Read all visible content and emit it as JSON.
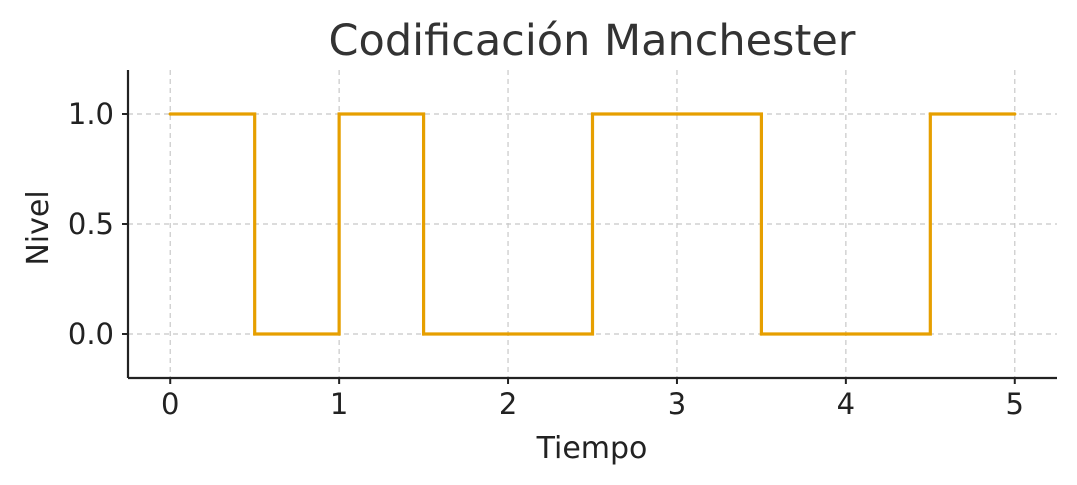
{
  "chart_data": {
    "type": "line",
    "step": "post",
    "title": "Codificación Manchester",
    "xlabel": "Tiempo",
    "ylabel": "Nivel",
    "xlim": [
      -0.25,
      5.25
    ],
    "ylim": [
      -0.2,
      1.2
    ],
    "x_ticks": [
      0,
      1,
      2,
      3,
      4,
      5
    ],
    "x_tick_labels": [
      "0",
      "1",
      "2",
      "3",
      "4",
      "5"
    ],
    "y_ticks": [
      0.0,
      0.5,
      1.0
    ],
    "y_tick_labels": [
      "0.0",
      "0.5",
      "1.0"
    ],
    "grid": true,
    "series": [
      {
        "color": "#E69F00",
        "x": [
          0,
          0.5,
          1,
          1.5,
          2,
          2.5,
          3,
          3.5,
          4,
          4.5,
          5
        ],
        "y": [
          1,
          0,
          1,
          0,
          0,
          1,
          1,
          0,
          0,
          1,
          1
        ]
      }
    ]
  }
}
